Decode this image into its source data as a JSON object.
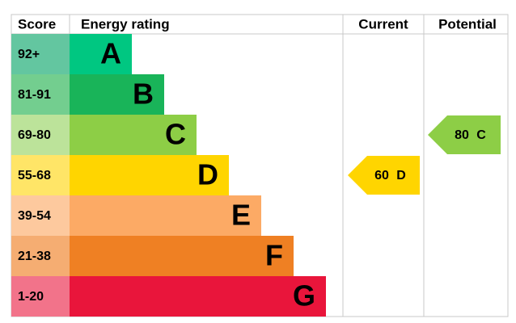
{
  "header": {
    "score": "Score",
    "rating": "Energy rating",
    "current": "Current",
    "potential": "Potential"
  },
  "bands": [
    {
      "score": "92+",
      "letter": "A",
      "color": "#00c781",
      "score_color": "#63c6a0"
    },
    {
      "score": "81-91",
      "letter": "B",
      "color": "#19b459",
      "score_color": "#73ce8f"
    },
    {
      "score": "69-80",
      "letter": "C",
      "color": "#8dce46",
      "score_color": "#bce39a"
    },
    {
      "score": "55-68",
      "letter": "D",
      "color": "#ffd500",
      "score_color": "#ffe567"
    },
    {
      "score": "39-54",
      "letter": "E",
      "color": "#fcaa65",
      "score_color": "#fdc99e"
    },
    {
      "score": "21-38",
      "letter": "F",
      "color": "#ef8023",
      "score_color": "#f5ad72"
    },
    {
      "score": "1-20",
      "letter": "G",
      "color": "#e9153b",
      "score_color": "#f2738a"
    }
  ],
  "current": {
    "value": 60,
    "letter": "D"
  },
  "potential": {
    "value": 80,
    "letter": "C"
  }
}
